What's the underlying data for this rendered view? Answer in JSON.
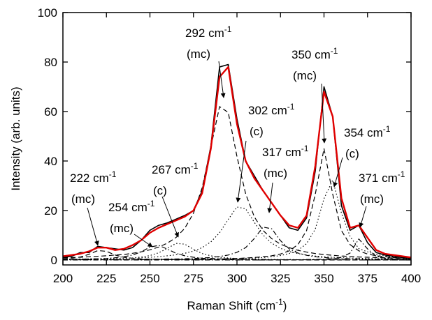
{
  "chart_data": {
    "type": "line",
    "x_label": {
      "text": "Raman Shift (cm",
      "sup": "-1",
      "end": ")"
    },
    "y_label": "Intensity (arb. units)",
    "x": [
      200,
      205,
      210,
      215,
      220,
      225,
      230,
      235,
      240,
      245,
      250,
      255,
      260,
      265,
      270,
      275,
      280,
      285,
      290,
      295,
      300,
      305,
      310,
      315,
      320,
      325,
      330,
      335,
      340,
      345,
      350,
      355,
      360,
      365,
      370,
      375,
      380,
      385,
      390,
      395,
      400
    ],
    "series": [
      {
        "color": "#000000",
        "style": "dashed",
        "values": [
          0.5,
          0.7,
          1.2,
          2.3,
          3.8,
          3.5,
          2.0,
          1.1,
          0.7,
          0.4,
          0.3,
          0.2,
          0.2,
          0.1,
          0.1,
          0.1,
          0.1,
          0.1,
          0.1,
          0.1,
          0.1,
          0,
          0,
          0,
          0,
          0,
          0,
          0,
          0,
          0,
          0,
          0,
          0,
          0,
          0,
          0,
          0,
          0,
          0,
          0,
          0
        ]
      },
      {
        "color": "#000000",
        "style": "dashdot",
        "values": [
          0.2,
          0.2,
          0.3,
          0.4,
          0.5,
          0.6,
          0.9,
          1.3,
          2.0,
          3.3,
          5.2,
          5.9,
          4.4,
          2.7,
          1.7,
          1.1,
          0.7,
          0.6,
          0.4,
          0.4,
          0.3,
          0.2,
          0.2,
          0.2,
          0.1,
          0.1,
          0.1,
          0.1,
          0.1,
          0.1,
          0.1,
          0.1,
          0.1,
          0,
          0,
          0,
          0,
          0,
          0,
          0,
          0
        ]
      },
      {
        "color": "#000000",
        "style": "dotted",
        "values": [
          0.2,
          0.2,
          0.2,
          0.2,
          0.3,
          0.4,
          0.5,
          0.6,
          0.8,
          1.2,
          1.8,
          2.9,
          4.7,
          6.7,
          6.4,
          4.3,
          2.6,
          1.7,
          1.1,
          0.8,
          0.6,
          0.5,
          0.4,
          0.3,
          0.2,
          0.2,
          0.2,
          0.1,
          0.1,
          0.1,
          0.1,
          0.1,
          0.1,
          0.1,
          0.1,
          0.1,
          0.1,
          0.1,
          0.1,
          0.1,
          0.1
        ]
      },
      {
        "color": "#000000",
        "style": "dashed",
        "values": [
          0.9,
          1.0,
          1.1,
          1.3,
          1.5,
          1.7,
          2.0,
          2.2,
          2.7,
          3.3,
          4.1,
          5.2,
          6.8,
          9.1,
          12.8,
          18.9,
          29.2,
          45.6,
          62.0,
          59.6,
          41.8,
          26.7,
          17.4,
          11.9,
          8.6,
          6.4,
          5.0,
          3.9,
          3.2,
          2.6,
          2.2,
          1.9,
          1.6,
          1.4,
          1.2,
          1.1,
          1.0,
          0.9,
          0.8,
          0.7,
          0.7
        ]
      },
      {
        "color": "#000000",
        "style": "dotted",
        "values": [
          0.3,
          0.3,
          0.4,
          0.4,
          0.5,
          0.5,
          0.6,
          0.7,
          0.8,
          0.9,
          1.1,
          1.3,
          1.7,
          2.1,
          2.7,
          3.6,
          5.0,
          7.3,
          11.0,
          16.4,
          21.4,
          20.7,
          15.2,
          10.1,
          6.8,
          4.7,
          3.4,
          2.6,
          2.0,
          1.6,
          1.3,
          1.1,
          0.9,
          0.8,
          0.7,
          0.6,
          0.5,
          0.5,
          0.4,
          0.4,
          0.3
        ]
      },
      {
        "color": "#000000",
        "style": "dashdot",
        "values": [
          0.1,
          0.1,
          0.1,
          0.1,
          0.1,
          0.1,
          0.2,
          0.2,
          0.2,
          0.2,
          0.3,
          0.3,
          0.4,
          0.4,
          0.5,
          0.6,
          0.8,
          1.0,
          1.4,
          2.0,
          3.1,
          5.0,
          8.7,
          13.3,
          12.6,
          7.8,
          4.5,
          2.8,
          1.9,
          1.3,
          1.0,
          0.7,
          0.6,
          0.5,
          0.4,
          0.3,
          0.3,
          0.3,
          0.2,
          0.2,
          0.2
        ]
      },
      {
        "color": "#000000",
        "style": "dashed",
        "values": [
          0.1,
          0.1,
          0.1,
          0.1,
          0.1,
          0.1,
          0.1,
          0.1,
          0.1,
          0.1,
          0.2,
          0.2,
          0.2,
          0.2,
          0.2,
          0.3,
          0.3,
          0.4,
          0.4,
          0.5,
          0.6,
          0.8,
          1.0,
          1.3,
          1.7,
          2.4,
          3.7,
          6.2,
          11.9,
          26.6,
          45.0,
          26.6,
          11.9,
          6.2,
          3.7,
          2.4,
          1.7,
          1.3,
          1.0,
          0.8,
          0.6
        ]
      },
      {
        "color": "#000000",
        "style": "dotted",
        "values": [
          0.1,
          0.1,
          0.1,
          0.1,
          0.1,
          0.1,
          0.1,
          0.1,
          0.1,
          0.1,
          0.2,
          0.2,
          0.2,
          0.2,
          0.2,
          0.3,
          0.3,
          0.3,
          0.4,
          0.5,
          0.5,
          0.7,
          0.8,
          1.0,
          1.3,
          1.8,
          2.6,
          3.9,
          6.6,
          12.5,
          24.8,
          32.3,
          19.0,
          9.5,
          4.6,
          3.3,
          2.2,
          1.6,
          1.2,
          0.9,
          0.7
        ]
      },
      {
        "color": "#000000",
        "style": "dashdot",
        "values": [
          0,
          0,
          0,
          0,
          0,
          0,
          0,
          0,
          0,
          0,
          0,
          0,
          0,
          0,
          0,
          0,
          0,
          0,
          0,
          0,
          0,
          0,
          0,
          0,
          0.1,
          0.1,
          0.1,
          0.1,
          0.2,
          0.2,
          0.3,
          0.5,
          1.1,
          2.8,
          8.5,
          4.5,
          1.5,
          0.7,
          0.4,
          0.3,
          0.2
        ]
      },
      {
        "color": "#000000",
        "style": "solid",
        "width": 1.6,
        "values": [
          1,
          1.5,
          3,
          3,
          5.5,
          5,
          4.5,
          4,
          5,
          8,
          12,
          14,
          15,
          16.5,
          18,
          20,
          28,
          46,
          78,
          79,
          57,
          40,
          34,
          28,
          23,
          18,
          13,
          12,
          17,
          36,
          70,
          58,
          22,
          12,
          14,
          7,
          3,
          2,
          1.5,
          1,
          0.5
        ]
      },
      {
        "color": "#e00000",
        "style": "solid",
        "width": 2.4,
        "values": [
          1.5,
          2,
          2.5,
          3.5,
          5,
          5,
          4,
          4.5,
          6,
          8,
          11,
          13,
          14.5,
          16,
          17.5,
          20,
          27,
          45,
          74,
          78,
          55,
          40,
          33,
          28,
          23,
          18,
          14,
          13,
          18,
          38,
          68,
          58,
          25,
          13,
          14,
          9,
          4,
          2.5,
          2,
          1.5,
          1
        ]
      }
    ],
    "annotations": [
      {
        "text": "292 cm",
        "sup": "-1",
        "note": "(mc)"
      },
      {
        "text": "302 cm",
        "sup": "-1",
        "note": "(c)"
      },
      {
        "text": "350 cm",
        "sup": "-1",
        "note": "(mc)"
      },
      {
        "text": "354 cm",
        "sup": "-1",
        "note": "(c)"
      },
      {
        "text": "317 cm",
        "sup": "-1",
        "note": "(mc)"
      },
      {
        "text": "371 cm",
        "sup": "-1",
        "note": "(mc)"
      },
      {
        "text": "267 cm",
        "sup": "-1",
        "note": "(c)"
      },
      {
        "text": "254 cm",
        "sup": "-1",
        "note": "(mc)"
      },
      {
        "text": "222 cm",
        "sup": "-1",
        "note": "(mc)"
      }
    ],
    "xlim": [
      200,
      400
    ],
    "xticks": [
      200,
      225,
      250,
      275,
      300,
      325,
      350,
      375,
      400
    ],
    "ylim": [
      -2,
      100
    ],
    "yticks": [
      0,
      20,
      40,
      60,
      80,
      100
    ],
    "grid": false
  }
}
